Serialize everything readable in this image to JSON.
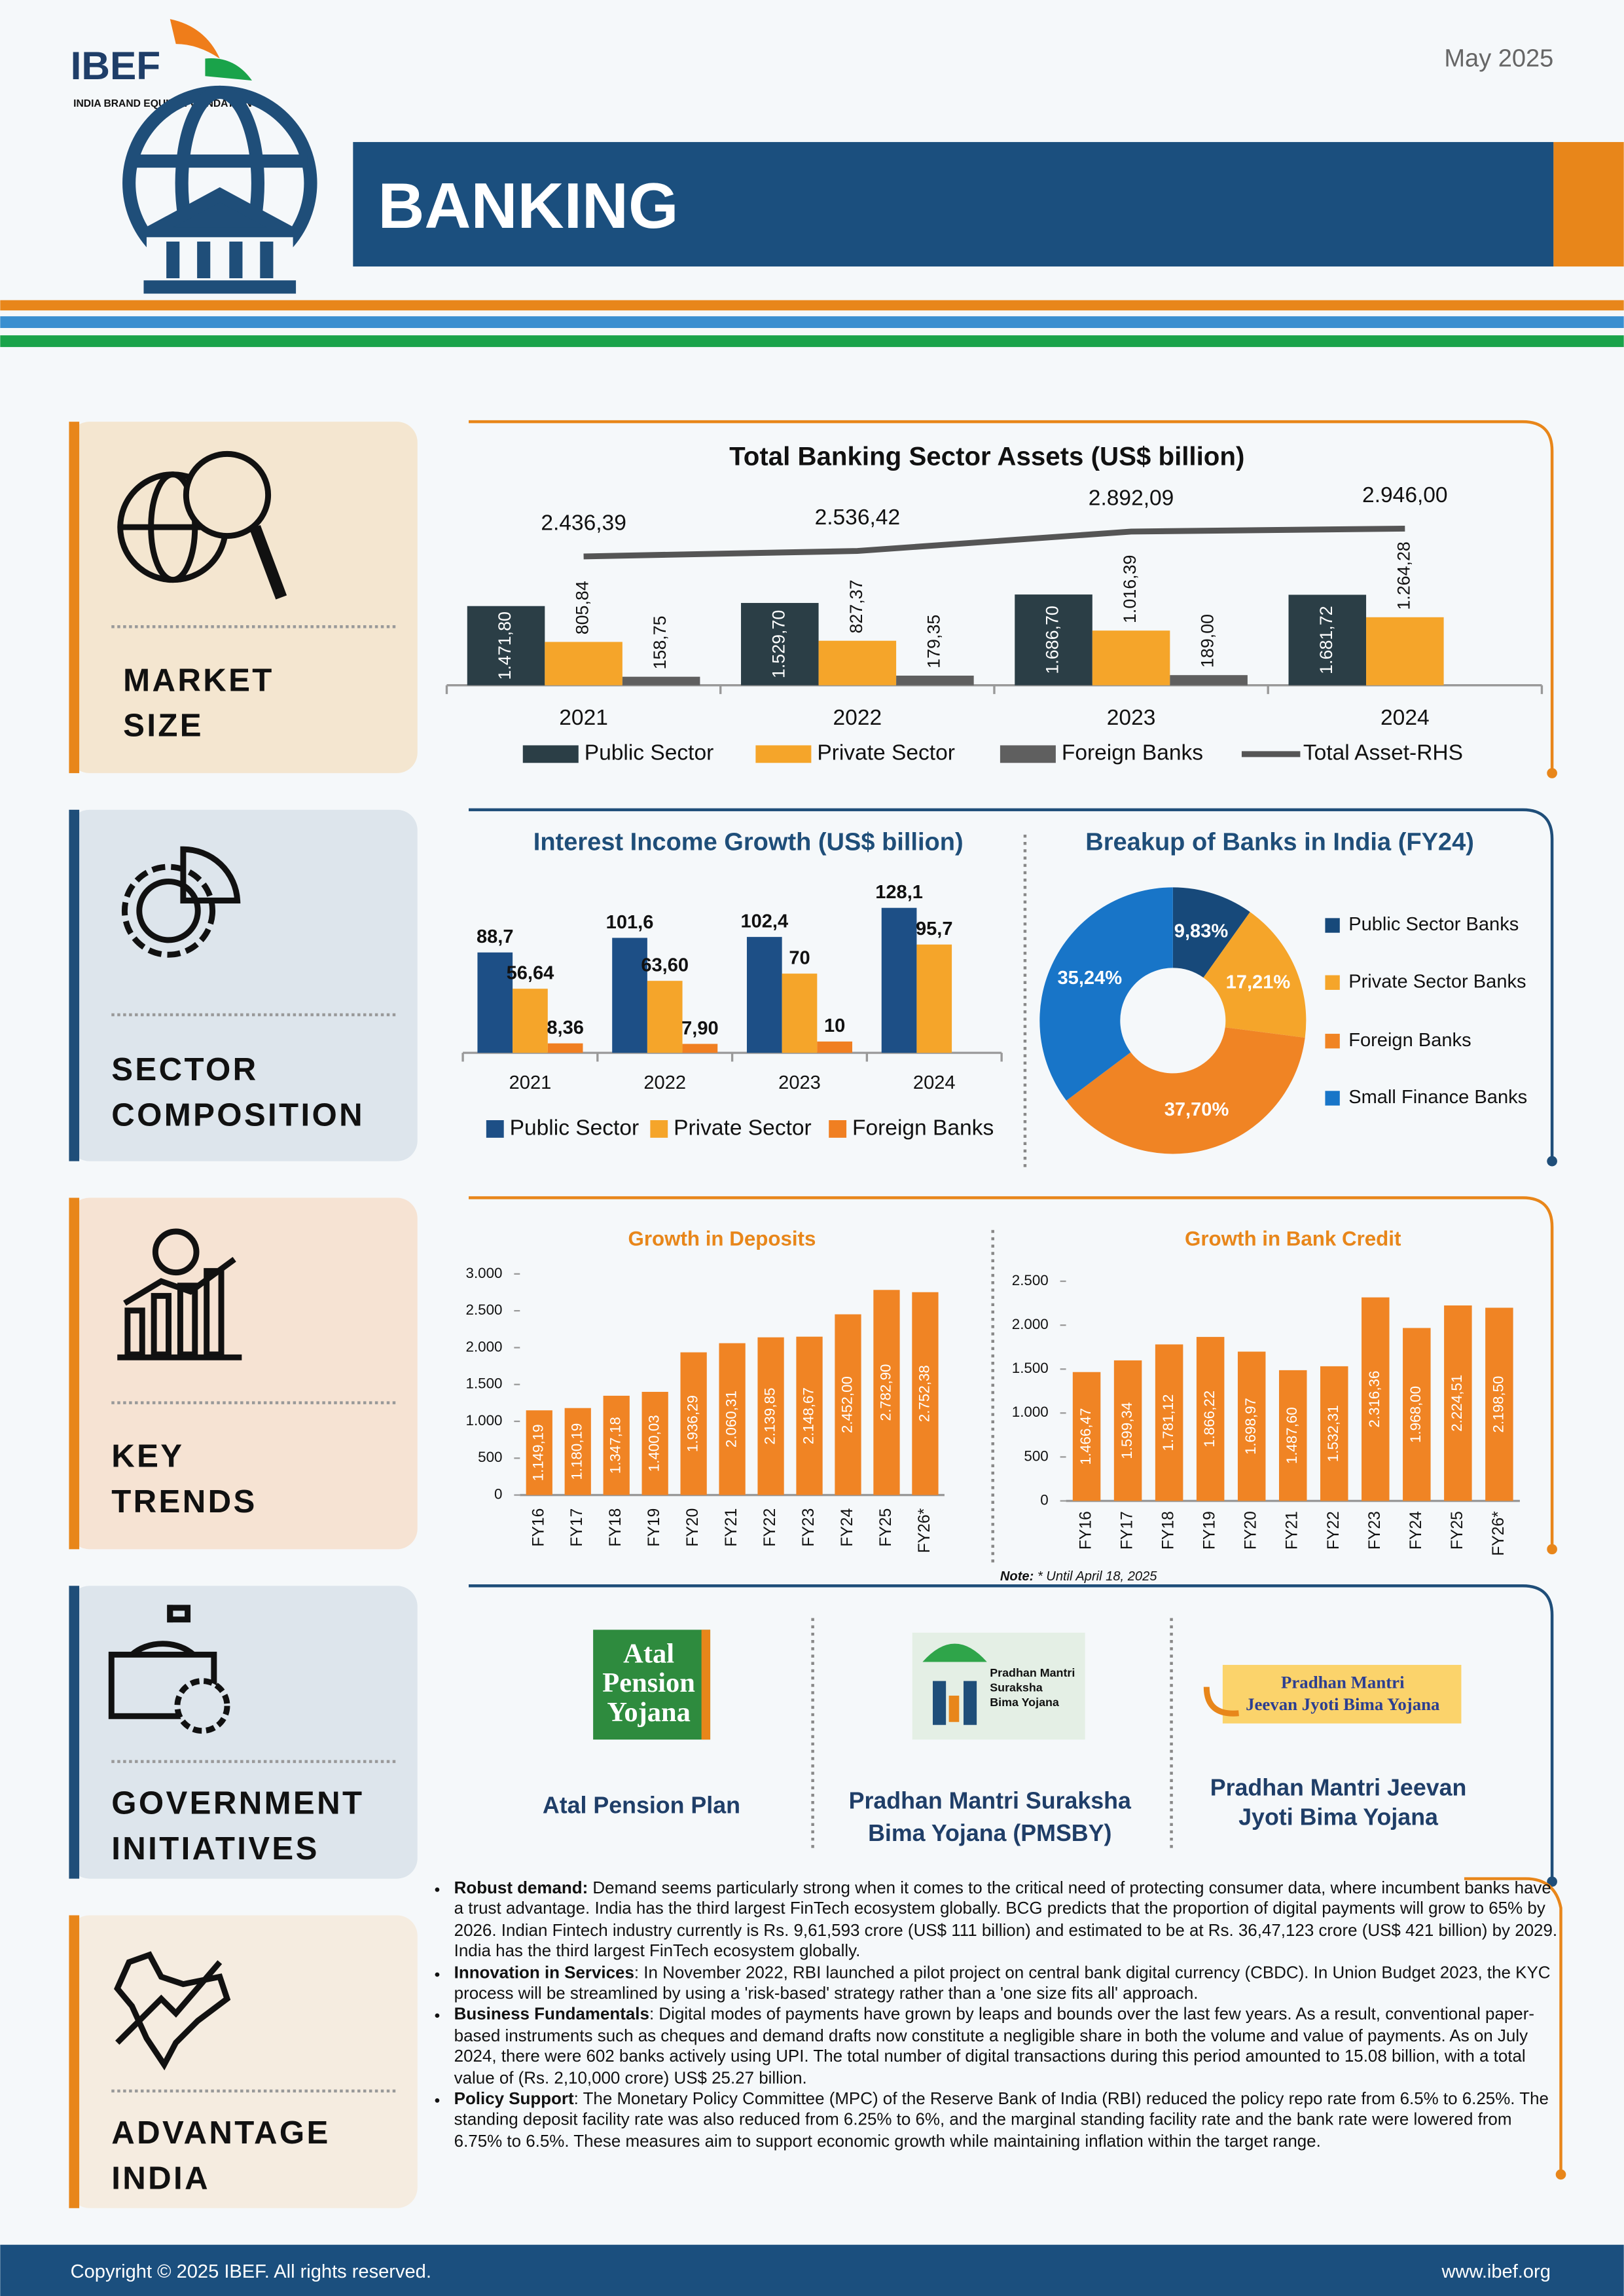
{
  "header": {
    "logo": "IBEF",
    "logo_subtitle": "INDIA BRAND EQUITY FOUNDATION",
    "date": "May 2025",
    "title": "BANKING"
  },
  "sections": [
    [
      "MARKET",
      "SIZE"
    ],
    [
      "SECTOR",
      "COMPOSITION"
    ],
    [
      "KEY",
      "TRENDS"
    ],
    [
      "GOVERNMENT",
      "INITIATIVES"
    ],
    [
      "ADVANTAGE",
      "INDIA"
    ]
  ],
  "chart_data": [
    {
      "type": "bar",
      "title": "Total Banking Sector Assets (US$ billion)",
      "categories": [
        "2021",
        "2022",
        "2023",
        "2024"
      ],
      "series": [
        {
          "name": "Public Sector",
          "color": "#2b3e46",
          "values": [
            1471.8,
            1529.7,
            1686.7,
            1681.72
          ],
          "value_labels": [
            "1.471,80",
            "1.529,70",
            "1.686,70",
            "1.681,72"
          ]
        },
        {
          "name": "Private Sector",
          "color": "#f5a52a",
          "values": [
            805.84,
            827.37,
            1016.39,
            1264.28
          ],
          "value_labels": [
            "805,84",
            "827,37",
            "1.016,39",
            "1.264,28"
          ]
        },
        {
          "name": "Foreign Banks",
          "color": "#5f5f5f",
          "values": [
            158.75,
            179.35,
            189.0,
            null
          ],
          "value_labels": [
            "158,75",
            "179,35",
            "189,00",
            null
          ]
        },
        {
          "name": "Total Asset-RHS",
          "color": "#555555",
          "type": "line",
          "axis": "y2",
          "values": [
            2436.39,
            2536.42,
            2892.09,
            2946.0
          ],
          "value_labels": [
            "2.436,39",
            "2.536,42",
            "2.892,09",
            "2.946,00"
          ]
        }
      ]
    },
    {
      "type": "bar",
      "title": "Interest Income Growth (US$ billion)",
      "categories": [
        "2021",
        "2022",
        "2023",
        "2024"
      ],
      "series": [
        {
          "name": "Public Sector",
          "color": "#1d4f86",
          "values": [
            88.7,
            101.6,
            102.4,
            128.1
          ],
          "value_labels": [
            "88,7",
            "101,6",
            "102,4",
            "128,1"
          ]
        },
        {
          "name": "Private Sector",
          "color": "#f5a52a",
          "values": [
            56.64,
            63.6,
            70,
            95.7
          ],
          "value_labels": [
            "56,64",
            "63,60",
            "70",
            "95,7"
          ]
        },
        {
          "name": "Foreign Banks",
          "color": "#f07f22",
          "values": [
            8.36,
            7.9,
            10,
            null
          ],
          "value_labels": [
            "8,36",
            "7,90",
            "10",
            null
          ]
        }
      ]
    },
    {
      "type": "pie",
      "title": "Breakup of Banks in India (FY24)",
      "categories": [
        "Public Sector Banks",
        "Private Sector Banks",
        "Foreign Banks",
        "Small Finance Banks"
      ],
      "values": [
        9.83,
        17.21,
        37.7,
        35.24
      ],
      "value_labels": [
        "9,83%",
        "17,21%",
        "37,70%",
        "35,24%"
      ],
      "colors": [
        "#17497a",
        "#f5a52a",
        "#f08424",
        "#1875c8"
      ]
    },
    {
      "type": "bar",
      "title": "Growth in Deposits",
      "categories": [
        "FY16",
        "FY17",
        "FY18",
        "FY19",
        "FY20",
        "FY21",
        "FY22",
        "FY23",
        "FY24",
        "FY25",
        "FY26*"
      ],
      "values": [
        1149.19,
        1180.19,
        1347.18,
        1400.03,
        1936.29,
        2060.31,
        2139.85,
        2148.67,
        2452.0,
        2782.9,
        2752.38
      ],
      "value_labels": [
        "1.149,19",
        "1.180,19",
        "1.347,18",
        "1.400,03",
        "1.936,29",
        "2.060,31",
        "2.139,85",
        "2.148,67",
        "2.452,00",
        "2.782,90",
        "2.752,38"
      ],
      "color": "#f08424",
      "ylim": [
        0,
        3000
      ],
      "yticks": [
        0,
        500,
        {
          "value": 1000,
          "label": "1.000"
        },
        {
          "value": 1500,
          "label": "1.500"
        },
        {
          "value": 2000,
          "label": "2.000"
        },
        {
          "value": 2500,
          "label": "2.500"
        },
        {
          "value": 3000,
          "label": "3.000"
        }
      ]
    },
    {
      "type": "bar",
      "title": "Growth in Bank Credit",
      "categories": [
        "FY16",
        "FY17",
        "FY18",
        "FY19",
        "FY20",
        "FY21",
        "FY22",
        "FY23",
        "FY24",
        "FY25",
        "FY26*"
      ],
      "values": [
        1466.47,
        1599.34,
        1781.12,
        1866.22,
        1698.97,
        1487.6,
        1532.31,
        2316.36,
        1968.0,
        2224.51,
        2198.5
      ],
      "value_labels": [
        "1.466,47",
        "1.599,34",
        "1.781,12",
        "1.866,22",
        "1.698,97",
        "1.487,60",
        "1.532,31",
        "2.316,36",
        "1.968,00",
        "2.224,51",
        "2.198,50"
      ],
      "color": "#f08424",
      "ylim": [
        0,
        2500
      ],
      "yticks": [
        0,
        500,
        {
          "value": 1000,
          "label": "1.000"
        },
        {
          "value": 1500,
          "label": "1.500"
        },
        {
          "value": 2000,
          "label": "2.000"
        },
        {
          "value": 2500,
          "label": "2.500"
        }
      ]
    }
  ],
  "chart_note": {
    "label": "Note:",
    "text": "* Until April 18, 2025"
  },
  "initiatives": [
    {
      "logo": [
        "Atal",
        "Pension",
        "Yojana"
      ],
      "caption": [
        "Atal Pension Plan"
      ]
    },
    {
      "logo": [
        "Pradhan Mantri",
        "Suraksha",
        "Bima Yojana"
      ],
      "caption": [
        "Pradhan Mantri Suraksha",
        "Bima Yojana (PMSBY)"
      ]
    },
    {
      "logo": [
        "Pradhan Mantri",
        "Jeevan Jyoti Bima Yojana"
      ],
      "caption": [
        "Pradhan Mantri Jeevan",
        "Jyoti Bima Yojana"
      ]
    }
  ],
  "advantage": [
    {
      "heading": "Robust demand:",
      "text": " Demand seems particularly strong when it comes to the critical need of protecting consumer data, where incumbent banks have a trust advantage. India has the third largest FinTech ecosystem globally. BCG predicts that the proportion of digital payments will grow to 65% by 2026. Indian Fintech industry currently is Rs. 9,61,593 crore (US$ 111 billion) and estimated to be at Rs. 36,47,123 crore (US$ 421 billion) by 2029. India has the third largest FinTech ecosystem globally."
    },
    {
      "heading": "Innovation in Services",
      "text": ": In November 2022, RBI launched a pilot project on central bank digital currency (CBDC). In Union Budget 2023, the KYC process will be streamlined by using a 'risk-based' strategy rather than a 'one size fits all' approach."
    },
    {
      "heading": "Business Fundamentals",
      "text": ": Digital modes of payments have grown by leaps and bounds over the last few years. As a result, conventional paper-based instruments such as cheques and demand drafts now constitute a negligible share in both the volume and value of payments. As on July 2024, there were 602 banks actively using UPI. The total number of digital transactions during this period amounted to 15.08 billion, with a total value of (Rs. 2,10,000 crore) US$ 25.27 billion."
    },
    {
      "heading": "Policy Support",
      "text": ": The Monetary Policy Committee (MPC) of the Reserve Bank of India (RBI) reduced the policy repo rate from 6.5% to 6.25%. The standing deposit facility rate was also reduced from 6.25% to 6%, and the marginal standing facility rate and the bank rate were lowered from 6.75% to 6.5%. These measures aim to support economic growth while maintaining inflation within the target range."
    }
  ],
  "footer": {
    "copyright": "Copyright © 2025 IBEF. All rights reserved.",
    "url": "www.ibef.org"
  }
}
